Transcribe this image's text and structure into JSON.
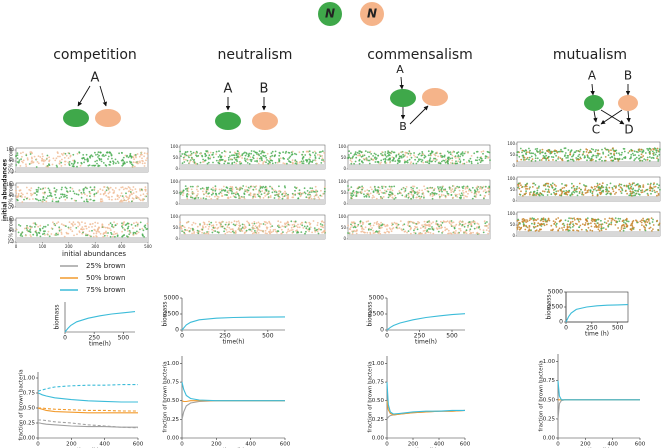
{
  "icons": [
    {
      "label": "N",
      "color": "#3fa84a"
    },
    {
      "label": "N",
      "color": "#f5b48a"
    }
  ],
  "side_label": "initial abundances",
  "row_labels": [
    "25% brown",
    "50% brown",
    "75% brown"
  ],
  "legend": {
    "title": "initial abundances",
    "items": [
      {
        "name": "25% brown",
        "color": "#a0a0a0"
      },
      {
        "name": "50% brown",
        "color": "#f29b2e"
      },
      {
        "name": "75% brown",
        "color": "#3cbcd9"
      }
    ]
  },
  "columns": [
    {
      "title": "competition",
      "nodes": [
        "A"
      ],
      "strip_yticks": [
        0,
        50,
        100
      ],
      "strip_xticks": [
        0,
        100,
        200,
        300,
        400,
        500
      ],
      "biomass": {
        "ylabel": "biomass",
        "xlabel": "time(h)",
        "xlim": [
          0,
          600
        ],
        "ylim": [
          0,
          2500
        ],
        "xticks": [
          0,
          250,
          500
        ],
        "x": [
          0,
          25,
          50,
          100,
          200,
          300,
          400,
          500,
          600
        ],
        "values": [
          0,
          300,
          550,
          850,
          1150,
          1350,
          1500,
          1600,
          1700
        ],
        "color": "#3cbcd9"
      },
      "fraction": {
        "ylabel": "fraction of brown bacteria",
        "xlabel": "time (h)",
        "xlim": [
          0,
          600
        ],
        "ylim": [
          0,
          1.1
        ],
        "xticks": [
          0,
          200,
          400,
          600
        ],
        "yticks": [
          {
            "value": 0,
            "label": "0.00"
          },
          {
            "value": 0.25,
            "label": "0.25"
          },
          {
            "value": 0.5,
            "label": "0.50"
          },
          {
            "value": 0.75,
            "label": "0.75"
          },
          {
            "value": 1,
            "label": "1.00"
          }
        ],
        "x": [
          0,
          10,
          25,
          50,
          100,
          200,
          300,
          400,
          500,
          600
        ],
        "series": [
          {
            "color": "#3cbcd9",
            "dashed": false,
            "values": [
              0.75,
              0.74,
              0.72,
              0.7,
              0.67,
              0.64,
              0.62,
              0.61,
              0.6,
              0.6
            ]
          },
          {
            "color": "#3cbcd9",
            "dashed": true,
            "values": [
              0.78,
              0.79,
              0.8,
              0.82,
              0.85,
              0.87,
              0.88,
              0.88,
              0.89,
              0.89
            ]
          },
          {
            "color": "#f29b2e",
            "dashed": false,
            "values": [
              0.5,
              0.49,
              0.48,
              0.46,
              0.44,
              0.43,
              0.42,
              0.42,
              0.42,
              0.42
            ]
          },
          {
            "color": "#f29b2e",
            "dashed": true,
            "values": [
              0.5,
              0.5,
              0.5,
              0.49,
              0.48,
              0.47,
              0.46,
              0.46,
              0.45,
              0.45
            ]
          },
          {
            "color": "#a0a0a0",
            "dashed": false,
            "values": [
              0.25,
              0.25,
              0.24,
              0.23,
              0.22,
              0.2,
              0.19,
              0.19,
              0.18,
              0.18
            ]
          },
          {
            "color": "#a0a0a0",
            "dashed": true,
            "values": [
              0.3,
              0.3,
              0.3,
              0.29,
              0.27,
              0.25,
              0.22,
              0.2,
              0.18,
              0.17
            ]
          }
        ]
      }
    },
    {
      "title": "neutralism",
      "nodes": [
        "A",
        "B"
      ],
      "strip_yticks": [
        0,
        50,
        100
      ],
      "biomass": {
        "ylabel": "biomass",
        "xlabel": "time(h)",
        "xlim": [
          0,
          600
        ],
        "ylim": [
          0,
          5000
        ],
        "xticks": [
          0,
          250,
          500
        ],
        "yticks": [
          0,
          2500,
          5000
        ],
        "x": [
          0,
          25,
          50,
          100,
          200,
          300,
          400,
          500,
          600
        ],
        "values": [
          0,
          800,
          1200,
          1600,
          1850,
          1950,
          2000,
          2020,
          2040
        ],
        "color": "#3cbcd9"
      },
      "fraction": {
        "ylabel": "fraction of brown bacteria",
        "xlabel": "time (h)",
        "xlim": [
          0,
          600
        ],
        "ylim": [
          0,
          1.1
        ],
        "xticks": [
          0,
          200,
          400,
          600
        ],
        "yticks": [
          {
            "value": 0,
            "label": "0.00"
          },
          {
            "value": 0.25,
            "label": "0.25"
          },
          {
            "value": 0.5,
            "label": "0.50"
          },
          {
            "value": 0.75,
            "label": "0.75"
          },
          {
            "value": 1,
            "label": "1.00"
          }
        ],
        "x": [
          0,
          10,
          25,
          50,
          100,
          200,
          300,
          400,
          500,
          600
        ],
        "series": [
          {
            "color": "#a0a0a0",
            "dashed": false,
            "values": [
              0.25,
              0.35,
              0.43,
              0.47,
              0.49,
              0.5,
              0.5,
              0.5,
              0.5,
              0.5
            ]
          },
          {
            "color": "#f29b2e",
            "dashed": false,
            "values": [
              0.5,
              0.49,
              0.49,
              0.5,
              0.5,
              0.5,
              0.5,
              0.5,
              0.5,
              0.5
            ]
          },
          {
            "color": "#3cbcd9",
            "dashed": false,
            "values": [
              0.75,
              0.65,
              0.57,
              0.53,
              0.51,
              0.5,
              0.5,
              0.5,
              0.5,
              0.5
            ]
          }
        ]
      }
    },
    {
      "title": "commensalism",
      "nodes": [
        "A",
        "B"
      ],
      "strip_yticks": [
        0,
        50,
        100
      ],
      "biomass": {
        "ylabel": "biomass",
        "xlabel": "time(h)",
        "xlim": [
          0,
          600
        ],
        "ylim": [
          0,
          5000
        ],
        "xticks": [
          0,
          250,
          500
        ],
        "yticks": [
          0,
          2500,
          5000
        ],
        "x": [
          0,
          25,
          50,
          100,
          200,
          300,
          400,
          500,
          600
        ],
        "values": [
          0,
          400,
          700,
          1100,
          1600,
          1950,
          2200,
          2400,
          2550
        ],
        "color": "#3cbcd9"
      },
      "fraction": {
        "ylabel": "fraction of brown bacteria",
        "xlabel": "time (h)",
        "xlim": [
          0,
          600
        ],
        "ylim": [
          0,
          1.1
        ],
        "xticks": [
          0,
          200,
          400,
          600
        ],
        "yticks": [
          {
            "value": 0,
            "label": "0.00"
          },
          {
            "value": 0.25,
            "label": "0.25"
          },
          {
            "value": 0.5,
            "label": "0.50"
          },
          {
            "value": 0.75,
            "label": "0.75"
          },
          {
            "value": 1,
            "label": "1.00"
          }
        ],
        "x": [
          0,
          10,
          25,
          50,
          100,
          200,
          300,
          400,
          500,
          600
        ],
        "series": [
          {
            "color": "#a0a0a0",
            "dashed": false,
            "values": [
              0.25,
              0.28,
              0.3,
              0.31,
              0.32,
              0.34,
              0.35,
              0.36,
              0.36,
              0.37
            ]
          },
          {
            "color": "#f29b2e",
            "dashed": false,
            "values": [
              0.5,
              0.38,
              0.33,
              0.31,
              0.32,
              0.34,
              0.35,
              0.36,
              0.36,
              0.37
            ]
          },
          {
            "color": "#3cbcd9",
            "dashed": false,
            "values": [
              0.75,
              0.45,
              0.35,
              0.32,
              0.33,
              0.35,
              0.36,
              0.36,
              0.37,
              0.37
            ]
          }
        ]
      }
    },
    {
      "title": "mutualism",
      "nodes": [
        "A",
        "B",
        "C",
        "D"
      ],
      "strip_yticks": [
        0,
        50,
        100
      ],
      "biomass": {
        "ylabel": "biomass",
        "xlabel": "time (h)",
        "xlim": [
          0,
          600
        ],
        "ylim": [
          0,
          5000
        ],
        "xticks": [
          0,
          250,
          500
        ],
        "yticks": [
          0,
          2500,
          5000
        ],
        "x": [
          0,
          25,
          50,
          100,
          200,
          300,
          400,
          500,
          600
        ],
        "values": [
          0,
          900,
          1500,
          2100,
          2500,
          2700,
          2800,
          2850,
          2900
        ],
        "color": "#3cbcd9"
      },
      "fraction": {
        "ylabel": "fraction of brown bacteria",
        "xlabel": "time (h)",
        "xlim": [
          0,
          600
        ],
        "ylim": [
          0,
          1.1
        ],
        "xticks": [
          0,
          200,
          400,
          600
        ],
        "yticks": [
          {
            "value": 0,
            "label": "0.00"
          },
          {
            "value": 0.25,
            "label": "0.25"
          },
          {
            "value": 0.5,
            "label": "0.50"
          },
          {
            "value": 0.75,
            "label": "0.75"
          },
          {
            "value": 1,
            "label": "1.00"
          }
        ],
        "x": [
          0,
          10,
          25,
          50,
          100,
          200,
          300,
          400,
          500,
          600
        ],
        "series": [
          {
            "color": "#a0a0a0",
            "dashed": false,
            "values": [
              0.25,
              0.45,
              0.49,
              0.5,
              0.5,
              0.5,
              0.5,
              0.5,
              0.5,
              0.5
            ]
          },
          {
            "color": "#f29b2e",
            "dashed": false,
            "values": [
              0.5,
              0.5,
              0.5,
              0.5,
              0.5,
              0.5,
              0.5,
              0.5,
              0.5,
              0.5
            ]
          },
          {
            "color": "#3cbcd9",
            "dashed": false,
            "values": [
              0.75,
              0.55,
              0.5,
              0.5,
              0.5,
              0.5,
              0.5,
              0.5,
              0.5,
              0.5
            ]
          }
        ]
      }
    }
  ]
}
